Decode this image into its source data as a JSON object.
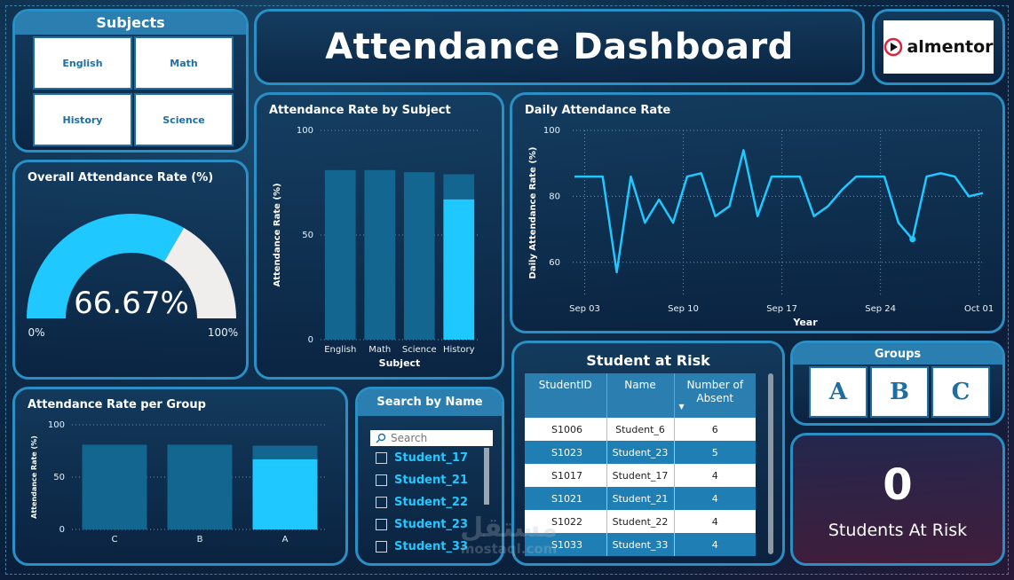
{
  "title": "Attendance Dashboard",
  "logo": {
    "text": "almentor"
  },
  "subjects_slicer": {
    "title": "Subjects",
    "items": [
      "English",
      "Math",
      "History",
      "Science"
    ]
  },
  "gauge": {
    "title": "Overall Attendance Rate (%)",
    "value_label": "66.67%",
    "value": 66.67,
    "min_label": "0%",
    "max_label": "100%",
    "colors": {
      "fill": "#1fc8ff",
      "rest": "#f0eeec"
    }
  },
  "subject_chart": {
    "chart_data": {
      "type": "bar",
      "title": "Attendance Rate by Subject",
      "categories": [
        "English",
        "Math",
        "Science",
        "History"
      ],
      "values": [
        81,
        81,
        80,
        79
      ],
      "highlight": [
        0,
        0,
        0,
        67
      ],
      "xlabel": "Subject",
      "ylabel": "Attendance Rate (%)",
      "ylim": [
        0,
        100
      ],
      "yticks": [
        "0",
        "50",
        "100"
      ]
    }
  },
  "daily_chart": {
    "chart_data": {
      "type": "line",
      "title": "Daily Attendance Rate",
      "xlabel": "Year",
      "ylabel": "Daily Attendance Rate (%)",
      "ylim": [
        50,
        100
      ],
      "yticks": [
        "60",
        "80",
        "100"
      ],
      "xticks": [
        "Sep 03",
        "Sep 10",
        "Sep 17",
        "Sep 24",
        "Oct 01"
      ],
      "values": [
        86,
        86,
        86,
        57,
        86,
        72,
        79,
        72,
        86,
        87,
        74,
        77,
        94,
        74,
        86,
        86,
        86,
        74,
        77,
        82,
        86,
        86,
        86,
        72,
        67,
        86,
        87,
        86,
        80,
        81
      ],
      "marker_index": 24
    }
  },
  "group_chart": {
    "chart_data": {
      "type": "bar",
      "title": "Attendance Rate per Group",
      "categories": [
        "C",
        "B",
        "A"
      ],
      "values": [
        81,
        81,
        80
      ],
      "highlight": [
        0,
        0,
        67
      ],
      "ylabel": "Attendance Rate (%)",
      "ylim": [
        0,
        100
      ],
      "yticks": [
        "0",
        "50",
        "100"
      ]
    }
  },
  "search": {
    "title": "Search by Name",
    "placeholder": "Search",
    "items": [
      "Student_17",
      "Student_21",
      "Student_22",
      "Student_23",
      "Student_33"
    ]
  },
  "risk_table": {
    "title": "Student at Risk",
    "headers": [
      "StudentID",
      "Name",
      "Number of Absent"
    ],
    "rows": [
      [
        "S1006",
        "Student_6",
        "6"
      ],
      [
        "S1023",
        "Student_23",
        "5"
      ],
      [
        "S1017",
        "Student_17",
        "4"
      ],
      [
        "S1021",
        "Student_21",
        "4"
      ],
      [
        "S1022",
        "Student_22",
        "4"
      ],
      [
        "S1033",
        "Student_33",
        "4"
      ]
    ]
  },
  "groups_slicer": {
    "title": "Groups",
    "items": [
      "A",
      "B",
      "C"
    ]
  },
  "kpi": {
    "value": "0",
    "label": "Students At Risk"
  },
  "watermark": {
    "arabic": "مستقل",
    "latin": "mostaql.com"
  }
}
